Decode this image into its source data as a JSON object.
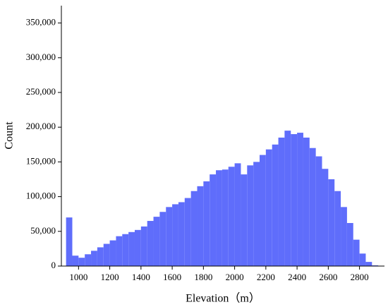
{
  "chart_data": {
    "type": "histogram",
    "xlabel": "Elevation（m）",
    "ylabel": "Count",
    "color": "#5f6dfb",
    "bins": [
      920,
      960,
      1000,
      1040,
      1080,
      1120,
      1160,
      1200,
      1240,
      1280,
      1320,
      1360,
      1400,
      1440,
      1480,
      1520,
      1560,
      1600,
      1640,
      1680,
      1720,
      1760,
      1800,
      1840,
      1880,
      1920,
      1960,
      2000,
      2040,
      2080,
      2120,
      2160,
      2200,
      2240,
      2280,
      2320,
      2360,
      2400,
      2440,
      2480,
      2520,
      2560,
      2600,
      2640,
      2680,
      2720,
      2760,
      2800,
      2840,
      2880,
      2920
    ],
    "values": [
      70000,
      15000,
      12000,
      17000,
      22000,
      27000,
      32000,
      37000,
      43000,
      46000,
      49000,
      52000,
      57000,
      65000,
      71000,
      78000,
      85000,
      89000,
      92000,
      98000,
      108000,
      115000,
      122000,
      132000,
      138000,
      139000,
      143000,
      148000,
      132000,
      145000,
      150000,
      160000,
      168000,
      175000,
      185000,
      195000,
      190000,
      192000,
      185000,
      170000,
      158000,
      140000,
      125000,
      108000,
      85000,
      62000,
      38000,
      18000,
      6000,
      1000
    ],
    "xlim": [
      890,
      2960
    ],
    "ylim": [
      0,
      375000
    ],
    "xticks": [
      1000,
      1200,
      1400,
      1600,
      1800,
      2000,
      2200,
      2400,
      2600,
      2800
    ],
    "yticks": [
      0,
      {
        "value": 50000,
        "label": "50,000"
      },
      {
        "value": 100000,
        "label": "100,000"
      },
      {
        "value": 150000,
        "label": "150,000"
      },
      {
        "value": 200000,
        "label": "200,000"
      },
      {
        "value": 250000,
        "label": "250,000"
      },
      {
        "value": 300000,
        "label": "300,000"
      },
      {
        "value": 350000,
        "label": "350,000"
      }
    ]
  }
}
